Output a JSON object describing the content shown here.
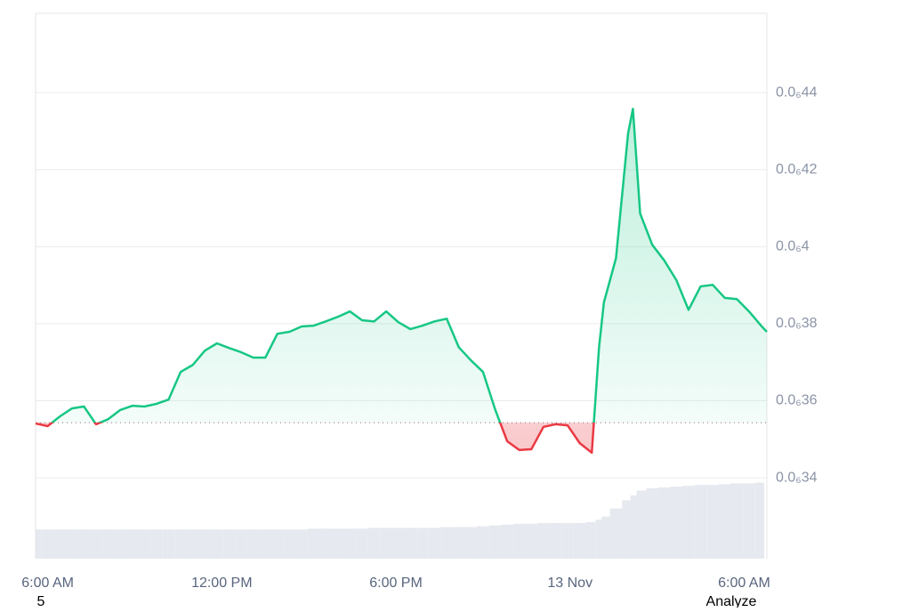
{
  "chart_data": {
    "type": "baseline",
    "x": [
      "12 Nov 05:35",
      "12 Nov 06:00",
      "12 Nov 06:25",
      "12 Nov 06:50",
      "12 Nov 07:15",
      "12 Nov 07:40",
      "12 Nov 08:05",
      "12 Nov 08:30",
      "12 Nov 08:55",
      "12 Nov 09:20",
      "12 Nov 09:45",
      "12 Nov 10:10",
      "12 Nov 10:35",
      "12 Nov 11:00",
      "12 Nov 11:25",
      "12 Nov 11:50",
      "12 Nov 12:15",
      "12 Nov 12:40",
      "12 Nov 13:05",
      "12 Nov 13:30",
      "12 Nov 13:55",
      "12 Nov 14:20",
      "12 Nov 14:45",
      "12 Nov 15:10",
      "12 Nov 15:35",
      "12 Nov 16:00",
      "12 Nov 16:25",
      "12 Nov 16:50",
      "12 Nov 17:15",
      "12 Nov 17:40",
      "12 Nov 18:05",
      "12 Nov 18:30",
      "12 Nov 18:55",
      "12 Nov 19:20",
      "12 Nov 19:45",
      "12 Nov 20:10",
      "12 Nov 20:35",
      "12 Nov 21:00",
      "12 Nov 21:25",
      "12 Nov 21:50",
      "12 Nov 22:15",
      "12 Nov 22:40",
      "12 Nov 23:05",
      "12 Nov 23:30",
      "12 Nov 23:55",
      "13 Nov 00:20",
      "13 Nov 00:45",
      "13 Nov 01:00",
      "13 Nov 01:10",
      "13 Nov 01:35",
      "13 Nov 02:00",
      "13 Nov 02:10",
      "13 Nov 02:25",
      "13 Nov 02:50",
      "13 Nov 03:15",
      "13 Nov 03:40",
      "13 Nov 04:05",
      "13 Nov 04:30",
      "13 Nov 04:55",
      "13 Nov 05:20",
      "13 Nov 05:45",
      "13 Nov 06:10",
      "13 Nov 06:35",
      "13 Nov 06:47"
    ],
    "values": [
      3.541e-07,
      3.534e-07,
      3.559e-07,
      3.58e-07,
      3.585e-07,
      3.539e-07,
      3.552e-07,
      3.576e-07,
      3.587e-07,
      3.585e-07,
      3.592e-07,
      3.603e-07,
      3.675e-07,
      3.693e-07,
      3.73e-07,
      3.749e-07,
      3.737e-07,
      3.726e-07,
      3.712e-07,
      3.712e-07,
      3.774e-07,
      3.779e-07,
      3.793e-07,
      3.795e-07,
      3.806e-07,
      3.818e-07,
      3.832e-07,
      3.809e-07,
      3.806e-07,
      3.832e-07,
      3.804e-07,
      3.786e-07,
      3.795e-07,
      3.806e-07,
      3.813e-07,
      3.739e-07,
      3.705e-07,
      3.675e-07,
      3.578e-07,
      3.495e-07,
      3.472e-07,
      3.474e-07,
      3.532e-07,
      3.539e-07,
      3.536e-07,
      3.49e-07,
      3.465e-07,
      3.739e-07,
      3.855e-07,
      3.97e-07,
      4.294e-07,
      4.358e-07,
      4.086e-07,
      4.005e-07,
      3.964e-07,
      3.913e-07,
      3.836e-07,
      3.897e-07,
      3.901e-07,
      3.867e-07,
      3.864e-07,
      3.832e-07,
      3.795e-07,
      3.779e-07
    ],
    "volume": [
      36,
      36,
      36,
      36,
      36,
      36,
      36,
      36,
      36,
      36,
      36,
      36,
      36,
      36,
      36,
      36,
      36,
      36,
      36,
      36,
      36,
      36,
      36,
      37,
      37,
      37,
      37,
      37,
      38,
      38,
      38,
      38,
      38,
      38,
      39,
      39,
      39,
      40,
      41,
      42,
      43,
      43,
      44,
      44,
      44,
      44,
      45,
      48,
      52,
      62,
      72,
      78,
      84,
      87,
      88,
      89,
      90,
      91,
      91,
      92,
      93,
      93,
      94,
      94
    ],
    "volume_lim": [
      0,
      100
    ],
    "baseline": 3.543e-07,
    "up_color": "#16c784",
    "down_color": "#ea3943",
    "volume_color": "#e6e9ef",
    "xlim": [
      "12 Nov 05:35",
      "13 Nov 06:47"
    ],
    "xticks": [
      {
        "value": "12 Nov 06:00",
        "label": "6:00 AM"
      },
      {
        "value": "12 Nov 12:00",
        "label": "12:00 PM"
      },
      {
        "value": "12 Nov 18:00",
        "label": "6:00 PM"
      },
      {
        "value": "13 Nov 00:00",
        "label": "13 Nov"
      },
      {
        "value": "13 Nov 06:00",
        "label": "6:00 AM"
      }
    ],
    "ylim": [
      3.19e-07,
      4.606e-07
    ],
    "yticks": [
      {
        "value": 3.4e-07,
        "label": "0.0₆34"
      },
      {
        "value": 3.6e-07,
        "label": "0.0₆36"
      },
      {
        "value": 3.8e-07,
        "label": "0.0₆38"
      },
      {
        "value": 4e-07,
        "label": "0.0₆4"
      },
      {
        "value": 4.2e-07,
        "label": "0.0₆42"
      },
      {
        "value": 4.4e-07,
        "label": "0.0₆44"
      }
    ],
    "grid": true
  },
  "footer": {
    "left": "5",
    "right": "Analyze"
  }
}
